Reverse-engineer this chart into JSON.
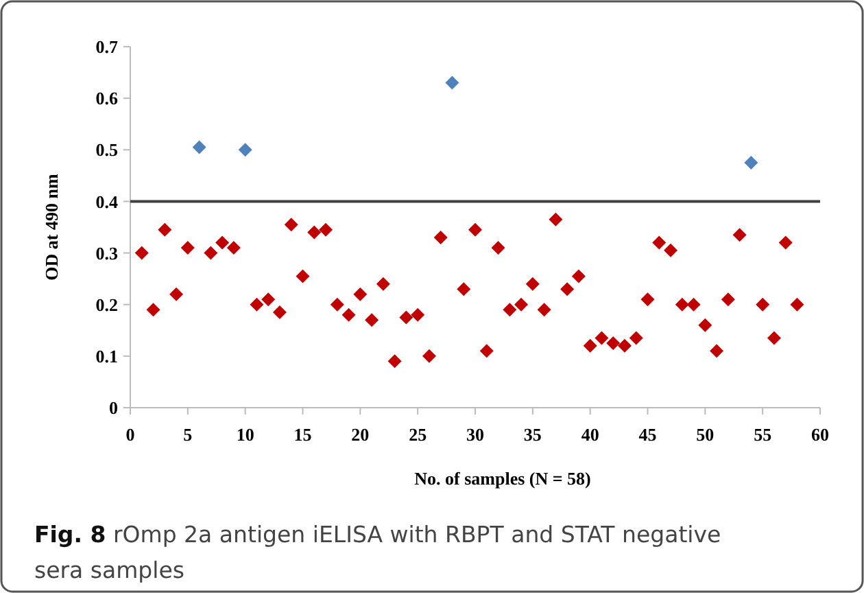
{
  "chart_data": {
    "type": "scatter",
    "xlabel": "No. of samples (N = 58)",
    "ylabel": "OD at 490 nm",
    "xlim": [
      0,
      60
    ],
    "xticks": [
      0,
      5,
      10,
      15,
      20,
      25,
      30,
      35,
      40,
      45,
      50,
      55,
      60
    ],
    "ylim": [
      0,
      0.7
    ],
    "yticks": [
      0,
      0.1,
      0.2,
      0.3,
      0.4,
      0.5,
      0.6,
      0.7
    ],
    "grid": false,
    "marker": "diamond",
    "series": [
      {
        "color": "#c00000",
        "x": [
          1,
          2,
          3,
          4,
          5,
          7,
          8,
          9,
          11,
          12,
          13,
          14,
          15,
          16,
          17,
          18,
          19,
          20,
          21,
          22,
          23,
          24,
          25,
          26,
          27,
          29,
          30,
          31,
          32,
          33,
          34,
          35,
          36,
          37,
          38,
          39,
          40,
          41,
          42,
          43,
          44,
          45,
          46,
          47,
          48,
          49,
          50,
          51,
          52,
          53,
          55,
          56,
          57,
          58
        ],
        "values": [
          0.3,
          0.19,
          0.345,
          0.22,
          0.31,
          0.3,
          0.32,
          0.31,
          0.2,
          0.21,
          0.185,
          0.355,
          0.255,
          0.34,
          0.345,
          0.2,
          0.18,
          0.22,
          0.17,
          0.24,
          0.09,
          0.175,
          0.18,
          0.1,
          0.33,
          0.23,
          0.345,
          0.11,
          0.31,
          0.19,
          0.2,
          0.24,
          0.19,
          0.365,
          0.23,
          0.255,
          0.12,
          0.135,
          0.125,
          0.12,
          0.135,
          0.21,
          0.32,
          0.305,
          0.2,
          0.2,
          0.16,
          0.11,
          0.21,
          0.335,
          0.2,
          0.135,
          0.32,
          0.2
        ]
      },
      {
        "color": "#4f81bd",
        "x": [
          6,
          10,
          28,
          54
        ],
        "values": [
          0.505,
          0.5,
          0.63,
          0.475
        ]
      }
    ],
    "ref_lines": [
      {
        "axis": "y",
        "value": 0.4,
        "color": "#404040",
        "line_style": "solid"
      }
    ],
    "annotations": [
      "Fig. 8 rOmp 2a antigen iELISA with RBPT and STAT negative sera samples"
    ]
  }
}
